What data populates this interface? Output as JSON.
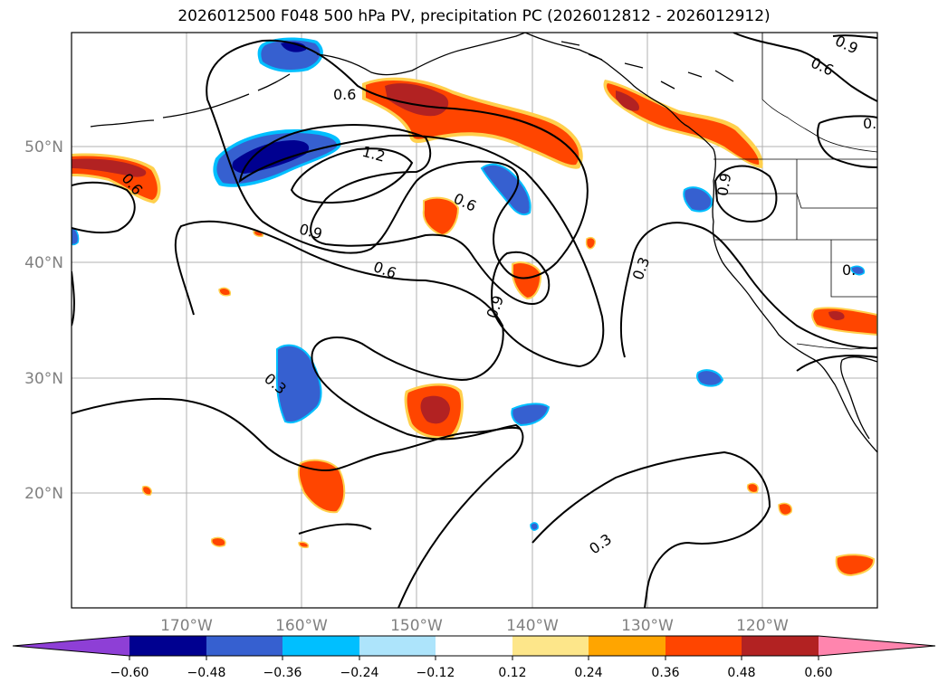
{
  "title": "2026012500 F048 500 hPa PV, precipitation PC (2026012812 - 2026012912)",
  "lon_labels": [
    "170°W",
    "160°W",
    "150°W",
    "140°W",
    "130°W",
    "120°W"
  ],
  "lat_labels": [
    "50°N",
    "40°N",
    "30°N",
    "20°N"
  ],
  "contour_labels": [
    "0.6",
    "1.2",
    "0.6",
    "0.9",
    "0.6",
    "0.6",
    "0.9",
    "0.3",
    "0.3",
    "0.3",
    "0.6",
    "0.9",
    "0.9",
    "0.",
    "0."
  ],
  "colorbar": {
    "ticks": [
      "−0.60",
      "−0.48",
      "−0.36",
      "−0.24",
      "−0.12",
      "0.12",
      "0.24",
      "0.36",
      "0.48",
      "0.60"
    ],
    "colors": [
      "#8e3fd6",
      "#000090",
      "#3660d0",
      "#00bfff",
      "#ade4fb",
      "#ffffff",
      "#fde68a",
      "#ffa500",
      "#ff4500",
      "#b22222",
      "#ff85ae"
    ]
  },
  "colors": {
    "contour": "#000000",
    "coast": "#000000",
    "grid": "#b0b0b0",
    "pos_light": "#ffd04d",
    "pos_mid": "#ff4500",
    "pos_dark": "#b22222",
    "neg_light": "#00bfff",
    "neg_mid": "#3660d0",
    "neg_dark": "#000090"
  }
}
